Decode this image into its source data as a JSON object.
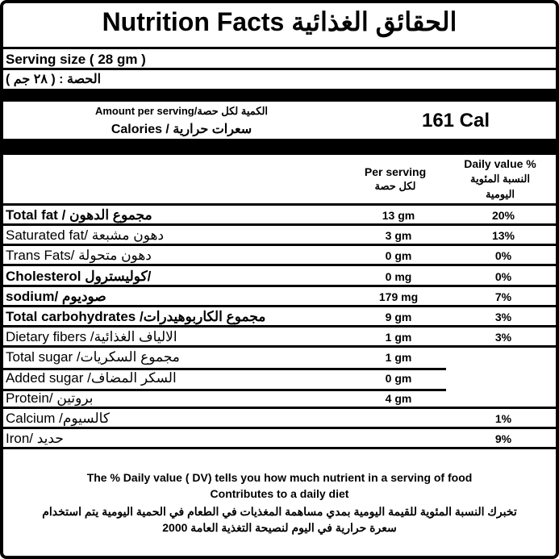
{
  "title": "Nutrition Facts الحقائق الغذائية",
  "serving": {
    "en": "Serving size ( 28 gm )",
    "ar": "الحصة : ( ٢٨ جم )"
  },
  "calories": {
    "amount_label": "Amount per serving/الكمية لكل حصة",
    "calories_label": "Calories  /  سعرات حرارية",
    "value": "161 Cal"
  },
  "header": {
    "per_serving": "Per serving",
    "per_serving_ar": "لكل حصة",
    "daily_value": "Daily value %",
    "daily_value_ar": "النسبة المئوية",
    "daily_value_ar2": "اليومية"
  },
  "rows": [
    {
      "name": "Total fat / مجموع الدهون",
      "per": "13 gm",
      "dv": "20%",
      "bold": true
    },
    {
      "name": "Saturated fat/ دهون مشبعة",
      "per": "3 gm",
      "dv": "13%"
    },
    {
      "name": "Trans Fats/ دهون متحولة",
      "per": "0 gm",
      "dv": "0%"
    },
    {
      "name": "Cholesterol كوليسترول/",
      "per": "0 mg",
      "dv": "0%",
      "bold": true
    },
    {
      "name": "sodium/ صوديوم",
      "per": "179 mg",
      "dv": "7%",
      "bold": true
    },
    {
      "name": "Total carbohydrates /مجموع الكاربوهيدرات",
      "per": "9 gm",
      "dv": "3%",
      "bold": true
    },
    {
      "name": "Dietary fibers /الالياف الغذائية",
      "per": "1  gm",
      "dv": "3%"
    },
    {
      "name": "Total sugar /مجموع السكريات",
      "per": "1 gm",
      "dv": ""
    },
    {
      "name": "Added sugar /السكر المضاف",
      "per": "0 gm",
      "dv": ""
    },
    {
      "name": "Protein/ بروتين",
      "per": "4 gm",
      "dv": ""
    },
    {
      "name": "Calcium /كالسيوم",
      "per": "",
      "dv": "1%"
    },
    {
      "name": "Iron/ حديد",
      "per": "",
      "dv": "9%"
    }
  ],
  "footer": {
    "en1": "The % Daily value ( DV) tells you how much nutrient in a serving of food",
    "en2": "Contributes to a daily diet",
    "ar1": "تخبرك النسبة المئوية للقيمة اليومية بمدي مساهمة المغذيات في الطعام في الحمية اليومية  يتم استخدام",
    "ar2": "سعرة حرارية في اليوم لنصيحة التغذية العامة 2000"
  }
}
